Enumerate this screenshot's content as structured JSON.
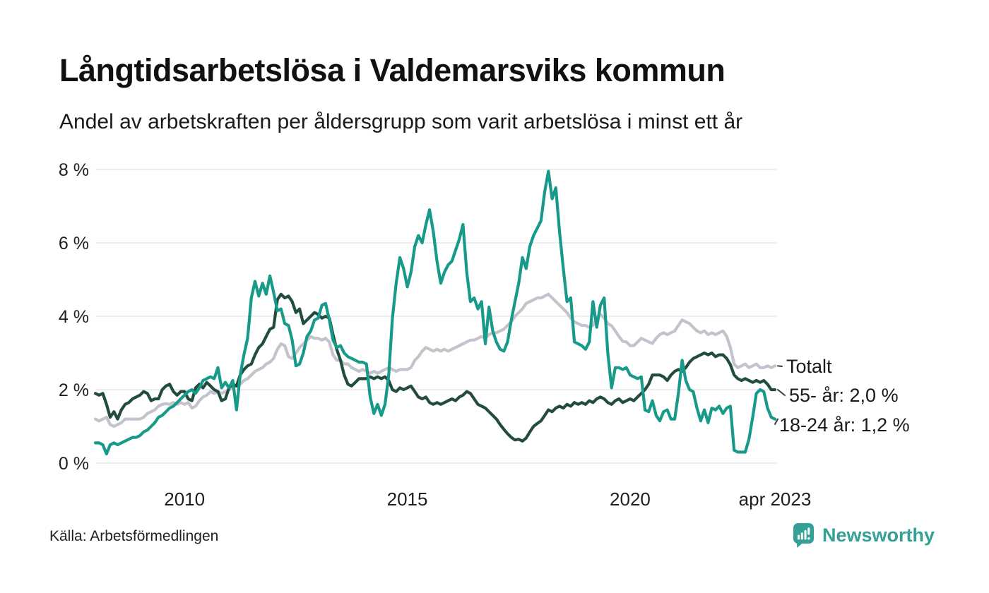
{
  "header": {
    "title": "Långtidsarbetslösa i Valdemarsviks kommun",
    "subtitle": "Andel av arbetskraften per åldersgrupp som varit arbetslösa i minst ett år"
  },
  "footer": {
    "source": "Källa: Arbetsförmedlingen",
    "brand_name": "Newsworthy"
  },
  "colors": {
    "background": "#ffffff",
    "text": "#1a1a1a",
    "gridline": "#e3e3e6",
    "totalt": "#c4c3cd",
    "age_55": "#214c3e",
    "age_18_24": "#189a8a",
    "brand_teal": "#35a095"
  },
  "chart_data": {
    "type": "line",
    "title": "Långtidsarbetslösa i Valdemarsviks kommun",
    "subtitle": "Andel av arbetskraften per åldersgrupp som varit arbetslösa i minst ett år",
    "xlabel": "",
    "ylabel": "",
    "unit": "%",
    "grid": "horizontal",
    "x_range": [
      "2008-01",
      "2023-04"
    ],
    "x_interval": "monthly",
    "ylim": [
      0,
      8
    ],
    "legend_position": "right-of-line-ends",
    "y_ticks": [
      {
        "label": "8 %",
        "value": 8
      },
      {
        "label": "6 %",
        "value": 6
      },
      {
        "label": "4 %",
        "value": 4
      },
      {
        "label": "2 %",
        "value": 2
      },
      {
        "label": "0 %",
        "value": 0
      }
    ],
    "x_ticks": [
      {
        "label": "2010",
        "month_index": 24
      },
      {
        "label": "2015",
        "month_index": 84
      },
      {
        "label": "2020",
        "month_index": 144
      },
      {
        "label": "apr 2023",
        "month_index": 183
      }
    ],
    "series": [
      {
        "name": "Totalt",
        "end_label": "Totalt",
        "end_value": 2.65,
        "color": "#c4c3cd",
        "values": [
          1.2,
          1.15,
          1.2,
          1.25,
          1.05,
          1.0,
          1.05,
          1.1,
          1.2,
          1.2,
          1.2,
          1.2,
          1.2,
          1.25,
          1.35,
          1.4,
          1.45,
          1.55,
          1.6,
          1.62,
          1.6,
          1.65,
          1.6,
          1.65,
          1.6,
          1.65,
          1.5,
          1.55,
          1.7,
          1.8,
          1.85,
          1.95,
          1.9,
          1.95,
          1.9,
          1.95,
          2.0,
          2.05,
          2.1,
          2.15,
          2.25,
          2.3,
          2.4,
          2.5,
          2.55,
          2.6,
          2.7,
          2.75,
          2.85,
          3.1,
          3.25,
          3.2,
          2.9,
          2.85,
          3.0,
          3.15,
          3.25,
          3.35,
          3.45,
          3.4,
          3.4,
          3.35,
          3.4,
          3.3,
          2.95,
          2.8,
          2.8,
          2.7,
          2.7,
          2.6,
          2.55,
          2.5,
          2.55,
          2.5,
          2.45,
          2.5,
          2.45,
          2.5,
          2.55,
          2.6,
          2.55,
          2.5,
          2.55,
          2.55,
          2.55,
          2.6,
          2.8,
          2.9,
          3.05,
          3.15,
          3.1,
          3.05,
          3.1,
          3.05,
          3.1,
          3.05,
          3.1,
          3.15,
          3.2,
          3.25,
          3.3,
          3.35,
          3.35,
          3.4,
          3.45,
          3.4,
          3.5,
          3.55,
          3.55,
          3.6,
          3.65,
          3.75,
          3.85,
          4.0,
          4.1,
          4.2,
          4.35,
          4.4,
          4.45,
          4.5,
          4.5,
          4.55,
          4.6,
          4.5,
          4.4,
          4.3,
          4.2,
          4.1,
          3.95,
          3.85,
          3.8,
          3.75,
          3.75,
          3.7,
          3.75,
          3.95,
          4.05,
          3.95,
          3.8,
          3.74,
          3.6,
          3.45,
          3.32,
          3.3,
          3.2,
          3.2,
          3.3,
          3.4,
          3.35,
          3.3,
          3.26,
          3.4,
          3.5,
          3.55,
          3.5,
          3.55,
          3.6,
          3.75,
          3.9,
          3.85,
          3.8,
          3.7,
          3.6,
          3.55,
          3.6,
          3.5,
          3.55,
          3.5,
          3.55,
          3.6,
          3.45,
          3.15,
          2.7,
          2.6,
          2.65,
          2.7,
          2.6,
          2.65,
          2.7,
          2.6,
          2.6,
          2.65,
          2.6,
          2.65
        ]
      },
      {
        "name": "55- år",
        "end_label": "55- år: 2,0 %",
        "end_value": 2.0,
        "color": "#214c3e",
        "values": [
          1.9,
          1.85,
          1.9,
          1.6,
          1.25,
          1.4,
          1.2,
          1.45,
          1.6,
          1.65,
          1.75,
          1.8,
          1.85,
          1.95,
          1.9,
          1.7,
          1.75,
          1.75,
          2.0,
          2.1,
          2.15,
          1.95,
          1.85,
          1.95,
          1.95,
          1.75,
          1.7,
          2.05,
          2.15,
          2.05,
          2.2,
          2.1,
          2.0,
          1.95,
          1.7,
          1.75,
          2.05,
          2.15,
          2.1,
          2.4,
          2.55,
          2.65,
          2.7,
          2.95,
          3.15,
          3.25,
          3.45,
          3.65,
          3.7,
          4.45,
          4.6,
          4.5,
          4.55,
          4.4,
          4.1,
          4.2,
          3.8,
          3.9,
          4.0,
          4.1,
          4.05,
          3.95,
          4.0,
          3.95,
          3.5,
          3.1,
          2.8,
          2.4,
          2.15,
          2.1,
          2.2,
          2.3,
          2.3,
          2.3,
          2.35,
          2.3,
          2.35,
          2.3,
          2.35,
          2.25,
          2.0,
          1.95,
          2.05,
          2.0,
          2.05,
          2.1,
          1.95,
          1.8,
          1.75,
          1.8,
          1.65,
          1.6,
          1.65,
          1.6,
          1.65,
          1.7,
          1.75,
          1.7,
          1.8,
          1.85,
          1.95,
          1.9,
          1.75,
          1.6,
          1.55,
          1.5,
          1.4,
          1.3,
          1.2,
          1.05,
          0.92,
          0.8,
          0.7,
          0.63,
          0.65,
          0.6,
          0.68,
          0.85,
          1.0,
          1.08,
          1.15,
          1.3,
          1.45,
          1.4,
          1.5,
          1.55,
          1.5,
          1.6,
          1.55,
          1.65,
          1.6,
          1.65,
          1.6,
          1.7,
          1.65,
          1.75,
          1.8,
          1.75,
          1.65,
          1.6,
          1.7,
          1.75,
          1.65,
          1.7,
          1.75,
          1.7,
          1.8,
          1.9,
          2.0,
          2.15,
          2.4,
          2.4,
          2.4,
          2.35,
          2.25,
          2.4,
          2.5,
          2.55,
          2.5,
          2.6,
          2.75,
          2.85,
          2.9,
          2.95,
          3.0,
          2.95,
          3.0,
          2.9,
          2.95,
          2.95,
          2.85,
          2.68,
          2.4,
          2.3,
          2.25,
          2.3,
          2.25,
          2.2,
          2.25,
          2.2,
          2.25,
          2.15,
          2.0,
          2.0
        ]
      },
      {
        "name": "18-24 år",
        "end_label": "18-24 år: 1,2 %",
        "end_value": 1.2,
        "color": "#189a8a",
        "values": [
          0.55,
          0.55,
          0.5,
          0.25,
          0.5,
          0.55,
          0.5,
          0.55,
          0.6,
          0.65,
          0.7,
          0.7,
          0.75,
          0.85,
          0.9,
          1.0,
          1.1,
          1.25,
          1.3,
          1.4,
          1.5,
          1.55,
          1.65,
          1.75,
          1.85,
          1.95,
          2.0,
          1.9,
          2.05,
          2.25,
          2.3,
          2.35,
          2.3,
          2.6,
          2.05,
          2.2,
          2.05,
          2.25,
          1.45,
          2.4,
          2.95,
          3.4,
          4.5,
          4.95,
          4.55,
          4.9,
          4.6,
          5.1,
          4.65,
          4.15,
          4.2,
          3.8,
          3.75,
          3.35,
          2.65,
          2.7,
          3.0,
          3.45,
          3.6,
          3.9,
          3.95,
          4.3,
          4.35,
          3.9,
          3.35,
          3.15,
          3.2,
          3.0,
          2.9,
          2.85,
          2.8,
          2.75,
          2.75,
          2.7,
          1.8,
          1.35,
          1.6,
          1.3,
          1.6,
          2.4,
          3.95,
          4.9,
          5.6,
          5.3,
          4.8,
          5.2,
          5.9,
          6.2,
          6.0,
          6.5,
          6.9,
          6.3,
          5.5,
          4.9,
          5.2,
          5.4,
          5.5,
          5.8,
          6.1,
          6.5,
          5.2,
          4.4,
          4.5,
          4.2,
          4.4,
          3.25,
          4.25,
          3.6,
          3.3,
          3.1,
          3.05,
          3.3,
          3.9,
          4.4,
          4.9,
          5.6,
          5.3,
          5.9,
          6.2,
          6.4,
          6.6,
          7.4,
          7.95,
          7.2,
          7.5,
          6.3,
          5.3,
          4.4,
          4.5,
          3.3,
          3.25,
          3.2,
          3.1,
          3.3,
          4.4,
          3.7,
          4.3,
          4.5,
          3.0,
          2.05,
          2.6,
          2.6,
          2.55,
          2.6,
          2.4,
          2.35,
          2.3,
          2.35,
          1.45,
          1.4,
          1.7,
          1.3,
          1.15,
          1.4,
          1.45,
          1.2,
          1.2,
          1.9,
          2.8,
          2.25,
          2.0,
          1.95,
          1.5,
          1.15,
          1.45,
          1.1,
          1.5,
          1.45,
          1.55,
          1.35,
          1.5,
          1.55,
          0.35,
          0.3,
          0.3,
          0.3,
          0.65,
          1.25,
          1.9,
          2.0,
          1.95,
          1.5,
          1.25,
          1.2
        ]
      }
    ]
  }
}
